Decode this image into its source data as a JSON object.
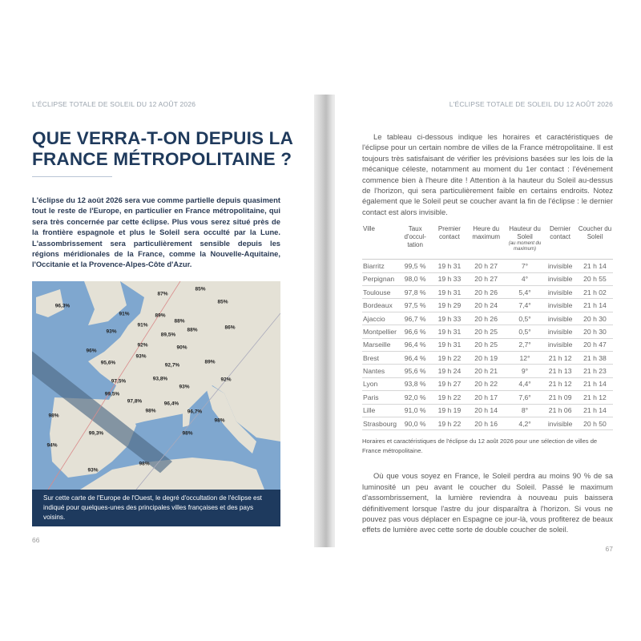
{
  "running_head": "L'ÉCLIPSE TOTALE DE SOLEIL DU 12 AOÛT 2026",
  "left": {
    "title": "QUE VERRA-T-ON DEPUIS LA FRANCE MÉTROPOLITAINE ?",
    "lead": "L'éclipse du 12 août 2026 sera vue comme partielle depuis quasiment tout le reste de l'Europe, en particulier en France métropolitaine, qui sera très concernée par cette éclipse. Plus vous serez situé près de la frontière espagnole et plus le Soleil sera occulté par la Lune. L'assombrissement sera particulièrement sensible depuis les régions méridionales de la France, comme la Nouvelle-Aquitaine, l'Occitanie et la Provence-Alpes-Côte d'Azur.",
    "map_labels": [
      "87%",
      "85%",
      "85%",
      "96,3%",
      "91%",
      "89%",
      "88%",
      "91%",
      "86%",
      "93%",
      "89,5%",
      "88%",
      "92%",
      "90%",
      "96%",
      "93%",
      "95,6%",
      "92,7%",
      "89%",
      "93,8%",
      "92%",
      "97,5%",
      "93%",
      "99,5%",
      "97,8%",
      "98%",
      "96,4%",
      "96,7%",
      "98%",
      "98%",
      "99,3%",
      "98%",
      "94%",
      "98%",
      "93%"
    ],
    "map_caption": "Sur cette carte de l'Europe de l'Ouest, le degré d'occultation de l'éclipse est indiqué pour quelques-unes des principales villes françaises et des pays voisins.",
    "page_number": "66"
  },
  "right": {
    "intro": "Le tableau ci-dessous indique les horaires et caractéristiques de l'éclipse pour un certain nombre de villes de la France métropolitaine. Il est toujours très satisfaisant de vérifier les prévisions basées sur les lois de la mécanique céleste, notamment au moment du 1er contact : l'événement commence bien à l'heure dite ! Attention à la hauteur du Soleil au-dessus de l'horizon, qui sera particulièrement faible en certains endroits. Notez également que le Soleil peut se coucher avant la fin de l'éclipse : le dernier contact est alors invisible.",
    "table": {
      "headers": [
        "Ville",
        "Taux d'occul-tation",
        "Premier contact",
        "Heure du maximum",
        "Hauteur du Soleil",
        "Dernier contact",
        "Coucher du Soleil"
      ],
      "header_note": "(au moment du maximum)",
      "rows": [
        [
          "Biarritz",
          "99,5 %",
          "19 h 31",
          "20 h 27",
          "7°",
          "invisible",
          "21 h 14"
        ],
        [
          "Perpignan",
          "98,0 %",
          "19 h 33",
          "20 h 27",
          "4°",
          "invisible",
          "20 h 55"
        ],
        [
          "Toulouse",
          "97,8 %",
          "19 h 31",
          "20 h 26",
          "5,4°",
          "invisible",
          "21 h 02"
        ],
        [
          "Bordeaux",
          "97,5 %",
          "19 h 29",
          "20 h 24",
          "7,4°",
          "invisible",
          "21 h 14"
        ],
        [
          "Ajaccio",
          "96,7 %",
          "19 h 33",
          "20 h 26",
          "0,5°",
          "invisible",
          "20 h 30"
        ],
        [
          "Montpellier",
          "96,6 %",
          "19 h 31",
          "20 h 25",
          "0,5°",
          "invisible",
          "20 h 30"
        ],
        [
          "Marseille",
          "96,4 %",
          "19 h 31",
          "20 h 25",
          "2,7°",
          "invisible",
          "20 h 47"
        ],
        [
          "Brest",
          "96,4 %",
          "19 h 22",
          "20 h 19",
          "12°",
          "21 h 12",
          "21 h 38"
        ],
        [
          "Nantes",
          "95,6 %",
          "19 h 24",
          "20 h 21",
          "9°",
          "21 h 13",
          "21 h 23"
        ],
        [
          "Lyon",
          "93,8 %",
          "19 h 27",
          "20 h 22",
          "4,4°",
          "21 h 12",
          "21 h 14"
        ],
        [
          "Paris",
          "92,0 %",
          "19 h 22",
          "20 h 17",
          "7,6°",
          "21 h 09",
          "21 h 12"
        ],
        [
          "Lille",
          "91,0 %",
          "19 h 19",
          "20 h 14",
          "8°",
          "21 h 06",
          "21 h 14"
        ],
        [
          "Strasbourg",
          "90,0 %",
          "19 h 22",
          "20 h 16",
          "4,2°",
          "invisible",
          "20 h 50"
        ]
      ]
    },
    "table_caption": "Horaires et caractéristiques de l'éclipse du 12 août 2026 pour une sélection de villes de France métropolitaine.",
    "closing": "Où que vous soyez en France, le Soleil perdra au moins 90 % de sa luminosité un peu avant le coucher du Soleil. Passé le maximum d'assombrissement, la lumière reviendra à nouveau puis baissera définitivement lorsque l'astre du jour disparaîtra à l'horizon. Si vous ne pouvez pas vous déplacer en Espagne ce jour-là, vous profiterez de beaux effets de lumière avec cette sorte de double coucher de soleil.",
    "page_number": "67"
  },
  "colors": {
    "tab": "#f0c77a",
    "title": "#1f3a5c",
    "caption_bg": "#1e3a5e",
    "sea": "#7fa7cf",
    "land": "#e4e1d6"
  }
}
